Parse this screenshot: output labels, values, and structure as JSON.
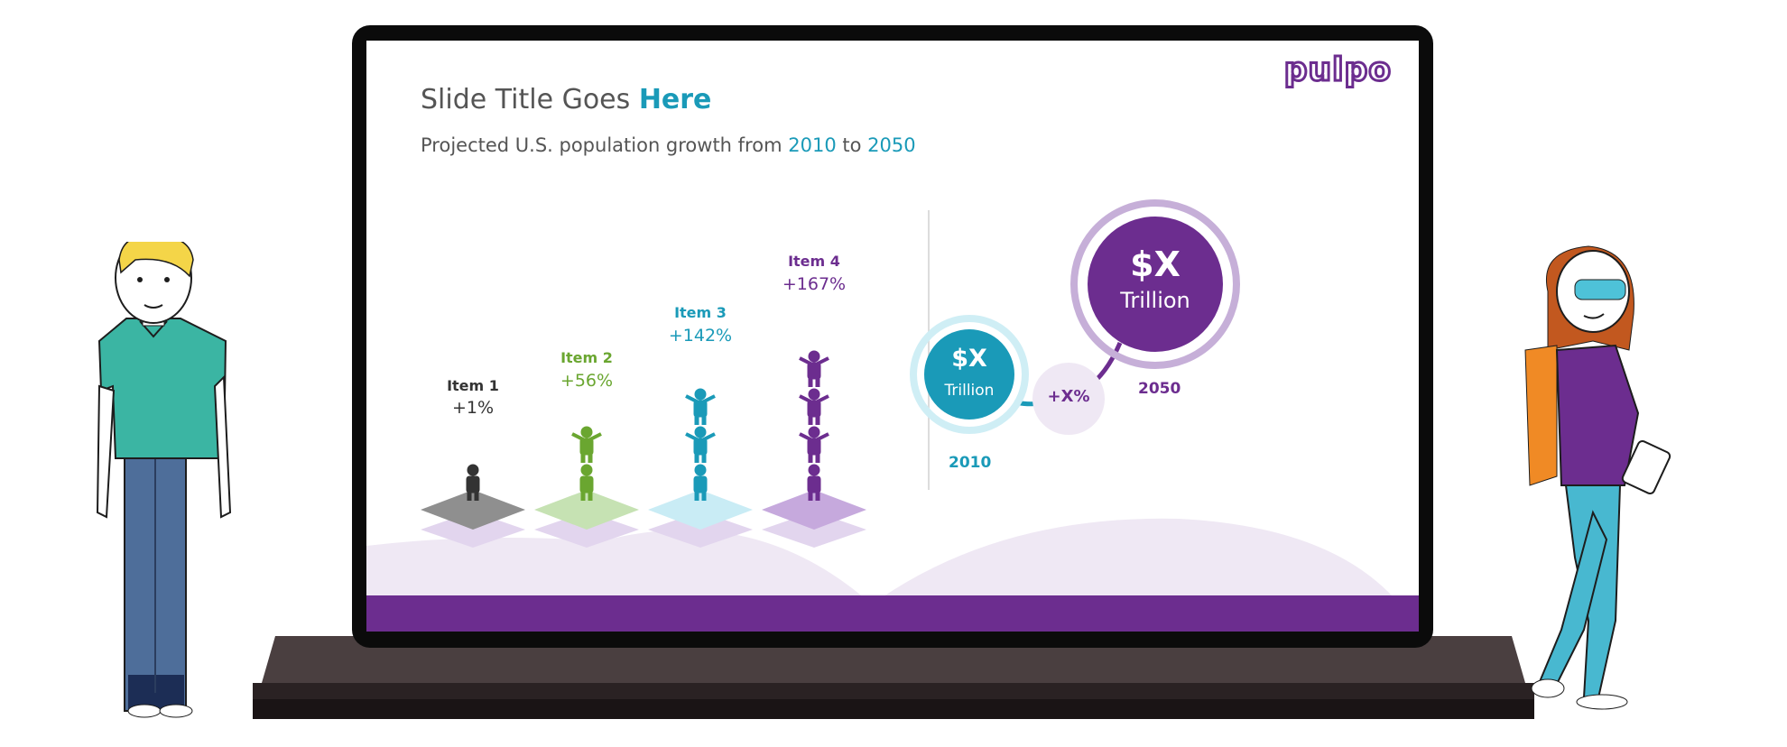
{
  "slide": {
    "title_prefix": "Slide Title Goes",
    "title_emphasis": "Here",
    "subtitle_prefix": "Projected U.S. population growth from",
    "subtitle_year_start": "2010",
    "subtitle_to": "to",
    "subtitle_year_end": "2050",
    "logo_text": "pulpo"
  },
  "items": [
    {
      "label": "Item 1",
      "value": "+1%",
      "people": 1,
      "color": "#333333"
    },
    {
      "label": "Item 2",
      "value": "+56%",
      "people": 2,
      "color": "#6aa630"
    },
    {
      "label": "Item 3",
      "value": "+142%",
      "people": 3,
      "color": "#1a9ab8"
    },
    {
      "label": "Item 4",
      "value": "+167%",
      "people": 4,
      "color": "#6c2d8f"
    }
  ],
  "bubbles": {
    "small": {
      "amount": "$X",
      "unit": "Trillion",
      "year": "2010"
    },
    "large": {
      "amount": "$X",
      "unit": "Trillion",
      "year": "2050"
    },
    "growth": "+X%"
  },
  "colors": {
    "purple": "#6c2d8f",
    "teal": "#1a9ab8",
    "green": "#6aa630",
    "dark": "#333333",
    "hill": "#efe8f4"
  }
}
